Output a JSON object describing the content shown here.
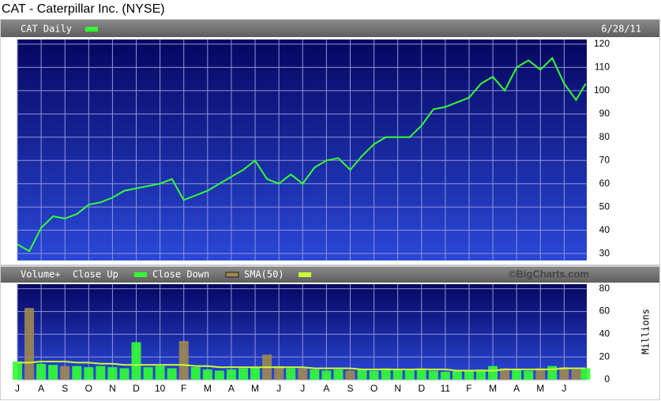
{
  "chart_data": [
    {
      "type": "line",
      "title": "CAT - Caterpillar Inc. (NYSE)",
      "date": "6/28/11",
      "x": [
        0,
        0.5,
        1,
        1.5,
        2,
        2.5,
        3,
        3.5,
        4,
        4.5,
        5,
        5.5,
        6,
        6.5,
        7,
        7.5,
        8,
        8.5,
        9,
        9.5,
        10,
        10.5,
        11,
        11.5,
        12,
        12.5,
        13,
        13.5,
        14,
        14.5,
        15,
        15.5,
        16,
        16.5,
        17,
        17.5,
        18,
        18.5,
        19,
        19.5,
        20,
        20.5,
        21,
        21.5,
        22,
        22.5,
        23,
        23.5,
        23.9
      ],
      "series": [
        {
          "name": "CAT Daily",
          "color": "#33ff33",
          "values": [
            34,
            31,
            41,
            46,
            45,
            47,
            51,
            52,
            54,
            57,
            58,
            59,
            60,
            62,
            53,
            55,
            57,
            60,
            63,
            66,
            70,
            62,
            60,
            64,
            60,
            67,
            70,
            71,
            66,
            72,
            77,
            80,
            80,
            80,
            85,
            92,
            93,
            95,
            97,
            103,
            106,
            100,
            110,
            113,
            109,
            114,
            103,
            96,
            103
          ]
        }
      ],
      "xlim": [
        0,
        23.95
      ],
      "ylim": [
        27,
        122
      ],
      "yticks": [
        30,
        40,
        50,
        60,
        70,
        80,
        90,
        100,
        110,
        120
      ],
      "grid": true
    },
    {
      "type": "bar",
      "label": "Volume+",
      "credit": "©BigCharts.com",
      "y_label": "Millions",
      "x": [
        0,
        0.5,
        1,
        1.5,
        2,
        2.5,
        3,
        3.5,
        4,
        4.5,
        5,
        5.5,
        6,
        6.5,
        7,
        7.5,
        8,
        8.5,
        9,
        9.5,
        10,
        10.5,
        11,
        11.5,
        12,
        12.5,
        13,
        13.5,
        14,
        14.5,
        15,
        15.5,
        16,
        16.5,
        17,
        17.5,
        18,
        18.5,
        19,
        19.5,
        20,
        20.5,
        21,
        21.5,
        22,
        22.5,
        23,
        23.5,
        23.9
      ],
      "series": [
        {
          "name": "Close Up",
          "color": "#33ff33",
          "values": [
            16,
            null,
            14,
            13,
            null,
            12,
            11,
            12,
            11,
            10,
            33,
            11,
            12,
            10,
            null,
            11,
            9,
            8,
            9,
            10,
            11,
            null,
            null,
            10,
            null,
            9,
            8,
            9,
            null,
            9,
            8,
            10,
            9,
            9,
            10,
            8,
            7,
            8,
            8,
            9,
            12,
            null,
            9,
            8,
            null,
            12,
            null,
            null,
            10
          ]
        },
        {
          "name": "Close Down",
          "color": "#a08850",
          "values": [
            null,
            63,
            null,
            null,
            12,
            null,
            null,
            null,
            null,
            null,
            null,
            null,
            null,
            null,
            34,
            null,
            null,
            null,
            null,
            null,
            null,
            22,
            12,
            null,
            10,
            null,
            null,
            null,
            8,
            null,
            null,
            null,
            null,
            null,
            null,
            null,
            null,
            null,
            null,
            null,
            null,
            10,
            null,
            null,
            10,
            null,
            11,
            9,
            null
          ]
        },
        {
          "name": "SMA(50)",
          "type": "line",
          "color": "#ccff33",
          "values": [
            15,
            15,
            16,
            16,
            16,
            15,
            15,
            14,
            14,
            13,
            13,
            13,
            13,
            13,
            13,
            12,
            12,
            11,
            11,
            11,
            11,
            11,
            11,
            11,
            11,
            10,
            10,
            10,
            10,
            9,
            9,
            9,
            9,
            9,
            9,
            9,
            9,
            8,
            8,
            8,
            8,
            9,
            9,
            9,
            9,
            9,
            10,
            10,
            10
          ]
        }
      ],
      "xlim": [
        0,
        23.95
      ],
      "ylim": [
        0,
        84
      ],
      "yticks": [
        0,
        20,
        40,
        60,
        80
      ],
      "grid": true,
      "xticks": [
        {
          "value": 0,
          "label": "J"
        },
        {
          "value": 1,
          "label": "A"
        },
        {
          "value": 2,
          "label": "S"
        },
        {
          "value": 3,
          "label": "O"
        },
        {
          "value": 4,
          "label": "N"
        },
        {
          "value": 5,
          "label": "D"
        },
        {
          "value": 6,
          "label": "10"
        },
        {
          "value": 7,
          "label": "F"
        },
        {
          "value": 8,
          "label": "M"
        },
        {
          "value": 9,
          "label": "A"
        },
        {
          "value": 10,
          "label": "M"
        },
        {
          "value": 11,
          "label": "J"
        },
        {
          "value": 12,
          "label": "J"
        },
        {
          "value": 13,
          "label": "A"
        },
        {
          "value": 14,
          "label": "S"
        },
        {
          "value": 15,
          "label": "O"
        },
        {
          "value": 16,
          "label": "N"
        },
        {
          "value": 17,
          "label": "D"
        },
        {
          "value": 18,
          "label": "11"
        },
        {
          "value": 19,
          "label": "F"
        },
        {
          "value": 20,
          "label": "M"
        },
        {
          "value": 21,
          "label": "A"
        },
        {
          "value": 22,
          "label": "M"
        },
        {
          "value": 23,
          "label": "J"
        }
      ]
    }
  ]
}
